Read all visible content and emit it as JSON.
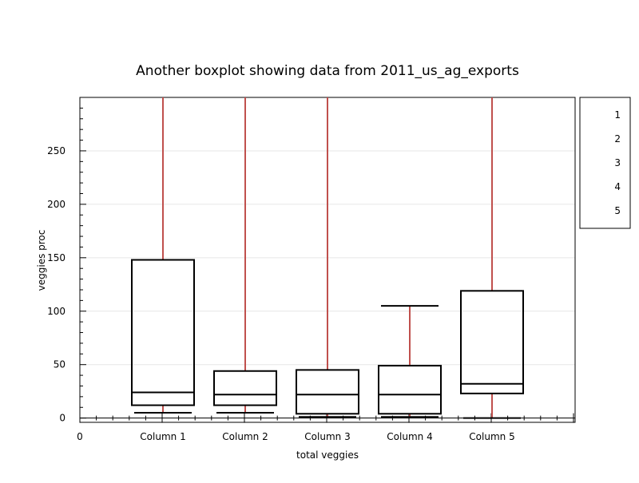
{
  "chart_data": {
    "type": "box",
    "title": "Another  boxplot showing data from 2011_us_ag_exports",
    "xlabel": "total veggies",
    "ylabel": "veggies proc",
    "ylim": [
      -4,
      300
    ],
    "yticks": [
      0,
      50,
      100,
      150,
      200,
      250
    ],
    "x_origin_label": "0",
    "categories": [
      "Column 1",
      "Column 2",
      "Column 3",
      "Column 4",
      "Column 5"
    ],
    "boxes": [
      {
        "category": "Column 1",
        "whisker_low": 5,
        "q1": 12,
        "median": 24,
        "q3": 148,
        "whisker_high": 300
      },
      {
        "category": "Column 2",
        "whisker_low": 5,
        "q1": 12,
        "median": 22,
        "q3": 44,
        "whisker_high": 300
      },
      {
        "category": "Column 3",
        "whisker_low": 1,
        "q1": 4,
        "median": 22,
        "q3": 45,
        "whisker_high": 300
      },
      {
        "category": "Column 4",
        "whisker_low": 1,
        "q1": 4,
        "median": 22,
        "q3": 49,
        "whisker_high": 105
      },
      {
        "category": "Column 5",
        "whisker_low": 0,
        "q1": 23,
        "median": 32,
        "q3": 119,
        "whisker_high": 300
      }
    ],
    "legend": {
      "position": "right",
      "entries": [
        "1",
        "2",
        "3",
        "4",
        "5"
      ]
    },
    "grid": true,
    "colors": {
      "whisker": "#c0504d",
      "box": "#000000",
      "grid": "#e6e6e6"
    }
  }
}
